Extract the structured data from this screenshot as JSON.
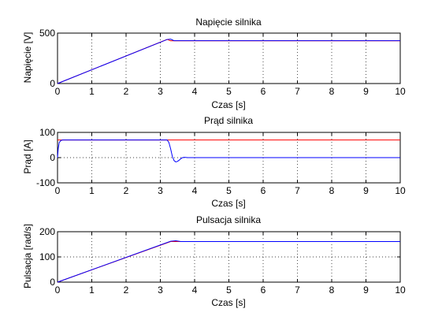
{
  "chart_data": [
    {
      "type": "line",
      "title": "Napięcie silnika",
      "xlabel": "Czas [s]",
      "ylabel": "Napięcie [V]",
      "xlim": [
        0,
        10
      ],
      "ylim": [
        0,
        500
      ],
      "xticks": [
        0,
        1,
        2,
        3,
        4,
        5,
        6,
        7,
        8,
        9,
        10
      ],
      "yticks": [
        0,
        500
      ],
      "grid": true,
      "series": [
        {
          "color": "#ff0000",
          "x": [
            0,
            3.1,
            3.2,
            3.3,
            10
          ],
          "y": [
            0,
            424,
            437,
            424,
            424
          ]
        },
        {
          "color": "#0000ff",
          "x": [
            0,
            3.2,
            3.3,
            3.4,
            10
          ],
          "y": [
            0,
            437,
            440,
            425,
            425
          ]
        }
      ]
    },
    {
      "type": "line",
      "title": "Prąd silnika",
      "xlabel": "Czas [s]",
      "ylabel": "Prąd [A]",
      "xlim": [
        0,
        10
      ],
      "ylim": [
        -100,
        100
      ],
      "xticks": [
        0,
        1,
        2,
        3,
        4,
        5,
        6,
        7,
        8,
        9,
        10
      ],
      "yticks": [
        -100,
        0,
        100
      ],
      "grid": true,
      "series": [
        {
          "color": "#ff0000",
          "x": [
            0,
            10
          ],
          "y": [
            70,
            70
          ]
        },
        {
          "color": "#0000ff",
          "x": [
            0,
            0.02,
            0.05,
            0.1,
            0.15,
            0.25,
            3.2,
            3.25,
            3.3,
            3.35,
            3.4,
            3.45,
            3.5,
            3.55,
            3.6,
            3.65,
            3.7,
            3.8,
            4.0,
            10
          ],
          "y": [
            0,
            35,
            60,
            68,
            70,
            70,
            70,
            60,
            35,
            5,
            -12,
            -17,
            -15,
            -10,
            -4,
            0,
            1,
            0,
            0,
            0
          ]
        }
      ]
    },
    {
      "type": "line",
      "title": "Pulsacja silnika",
      "xlabel": "Czas [s]",
      "ylabel": "Pulsacja [rad/s]",
      "xlim": [
        0,
        10
      ],
      "ylim": [
        0,
        200
      ],
      "xticks": [
        0,
        1,
        2,
        3,
        4,
        5,
        6,
        7,
        8,
        9,
        10
      ],
      "yticks": [
        0,
        100,
        200
      ],
      "grid": true,
      "series": [
        {
          "color": "#ff0000",
          "x": [
            0,
            3.3,
            3.4,
            10
          ],
          "y": [
            0,
            161,
            161,
            161
          ]
        },
        {
          "color": "#0000ff",
          "x": [
            0,
            3.3,
            3.45,
            3.6,
            10
          ],
          "y": [
            0,
            162,
            164,
            161,
            161
          ]
        }
      ]
    }
  ]
}
